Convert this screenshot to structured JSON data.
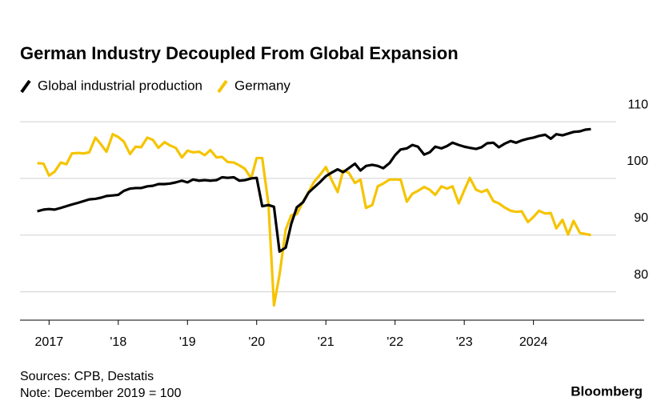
{
  "chart_data": {
    "type": "line",
    "title": "German Industry Decoupled From Global Expansion",
    "source": "Sources: CPB, Destatis",
    "note": "Note: December 2019 = 100",
    "credit": "Bloomberg",
    "x": [
      2016.83,
      2016.92,
      2017.0,
      2017.08,
      2017.17,
      2017.25,
      2017.33,
      2017.42,
      2017.5,
      2017.58,
      2017.67,
      2017.75,
      2017.83,
      2017.92,
      2018.0,
      2018.08,
      2018.17,
      2018.25,
      2018.33,
      2018.42,
      2018.5,
      2018.58,
      2018.67,
      2018.75,
      2018.83,
      2018.92,
      2019.0,
      2019.08,
      2019.17,
      2019.25,
      2019.33,
      2019.42,
      2019.5,
      2019.58,
      2019.67,
      2019.75,
      2019.83,
      2019.92,
      2020.0,
      2020.08,
      2020.17,
      2020.25,
      2020.33,
      2020.42,
      2020.5,
      2020.58,
      2020.67,
      2020.75,
      2020.83,
      2020.92,
      2021.0,
      2021.08,
      2021.17,
      2021.25,
      2021.33,
      2021.42,
      2021.5,
      2021.58,
      2021.67,
      2021.75,
      2021.83,
      2021.92,
      2022.0,
      2022.08,
      2022.17,
      2022.25,
      2022.33,
      2022.42,
      2022.5,
      2022.58,
      2022.67,
      2022.75,
      2022.83,
      2022.92,
      2023.0,
      2023.08,
      2023.17,
      2023.25,
      2023.33,
      2023.42,
      2023.5,
      2023.58,
      2023.67,
      2023.75,
      2023.83,
      2023.92,
      2024.0,
      2024.08,
      2024.17,
      2024.25,
      2024.33,
      2024.42,
      2024.5,
      2024.58,
      2024.67,
      2024.75,
      2024.83
    ],
    "series": [
      {
        "name": "Global industrial production",
        "color": "#000000",
        "values": [
          94.2,
          94.5,
          94.6,
          94.5,
          94.8,
          95.1,
          95.4,
          95.7,
          96.0,
          96.3,
          96.4,
          96.6,
          96.9,
          97.0,
          97.1,
          97.8,
          98.2,
          98.3,
          98.3,
          98.6,
          98.7,
          99.0,
          99.0,
          99.1,
          99.3,
          99.6,
          99.3,
          99.8,
          99.6,
          99.7,
          99.6,
          99.7,
          100.2,
          100.1,
          100.2,
          99.6,
          99.7,
          100.0,
          100.1,
          95.1,
          95.3,
          95.0,
          87.1,
          87.8,
          92.0,
          94.9,
          95.8,
          97.5,
          98.4,
          99.4,
          100.4,
          101.0,
          101.6,
          101.1,
          101.8,
          102.6,
          101.4,
          102.2,
          102.4,
          102.2,
          101.8,
          102.7,
          104.1,
          105.1,
          105.3,
          105.9,
          105.6,
          104.2,
          104.6,
          105.6,
          105.3,
          105.7,
          106.3,
          105.9,
          105.6,
          105.4,
          105.2,
          105.5,
          106.2,
          106.3,
          105.5,
          106.1,
          106.6,
          106.3,
          106.7,
          107.0,
          107.2,
          107.5,
          107.7,
          107.0,
          107.8,
          107.6,
          107.9,
          108.2,
          108.3,
          108.6,
          108.7
        ]
      },
      {
        "name": "Germany",
        "color": "#f5c400",
        "values": [
          102.7,
          102.6,
          100.5,
          101.2,
          102.8,
          102.5,
          104.4,
          104.5,
          104.4,
          104.6,
          107.2,
          106.0,
          104.7,
          107.8,
          107.3,
          106.5,
          104.3,
          105.6,
          105.5,
          107.2,
          106.8,
          105.4,
          106.4,
          105.8,
          105.4,
          103.7,
          104.9,
          104.6,
          104.7,
          104.1,
          105.0,
          103.7,
          103.8,
          102.9,
          102.8,
          102.3,
          101.7,
          100.0,
          103.6,
          103.6,
          95.5,
          77.6,
          83.0,
          91.0,
          93.5,
          93.7,
          95.9,
          97.6,
          99.4,
          100.7,
          102.0,
          99.8,
          97.6,
          101.4,
          101.0,
          99.2,
          99.8,
          94.8,
          95.3,
          98.6,
          99.1,
          99.8,
          99.8,
          99.8,
          95.9,
          97.3,
          97.8,
          98.5,
          98.0,
          97.1,
          98.6,
          98.2,
          98.6,
          95.6,
          97.9,
          100.1,
          98.0,
          97.6,
          98.0,
          96.0,
          95.6,
          94.9,
          94.3,
          94.1,
          94.2,
          92.3,
          93.2,
          94.3,
          93.8,
          93.9,
          91.2,
          92.7,
          90.1,
          92.5,
          90.4,
          90.2,
          90.0
        ]
      }
    ],
    "xlim": [
      2016.58,
      2025.6
    ],
    "xticks": [
      {
        "value": 2017,
        "label": "2017"
      },
      {
        "value": 2018,
        "label": "'18"
      },
      {
        "value": 2019,
        "label": "'19"
      },
      {
        "value": 2020,
        "label": "'20"
      },
      {
        "value": 2021,
        "label": "'21"
      },
      {
        "value": 2022,
        "label": "'22"
      },
      {
        "value": 2023,
        "label": "'23"
      },
      {
        "value": 2024,
        "label": "2024"
      }
    ],
    "ylim": [
      75,
      111
    ],
    "yticks": [
      80,
      90,
      100,
      110
    ],
    "grid": true
  }
}
